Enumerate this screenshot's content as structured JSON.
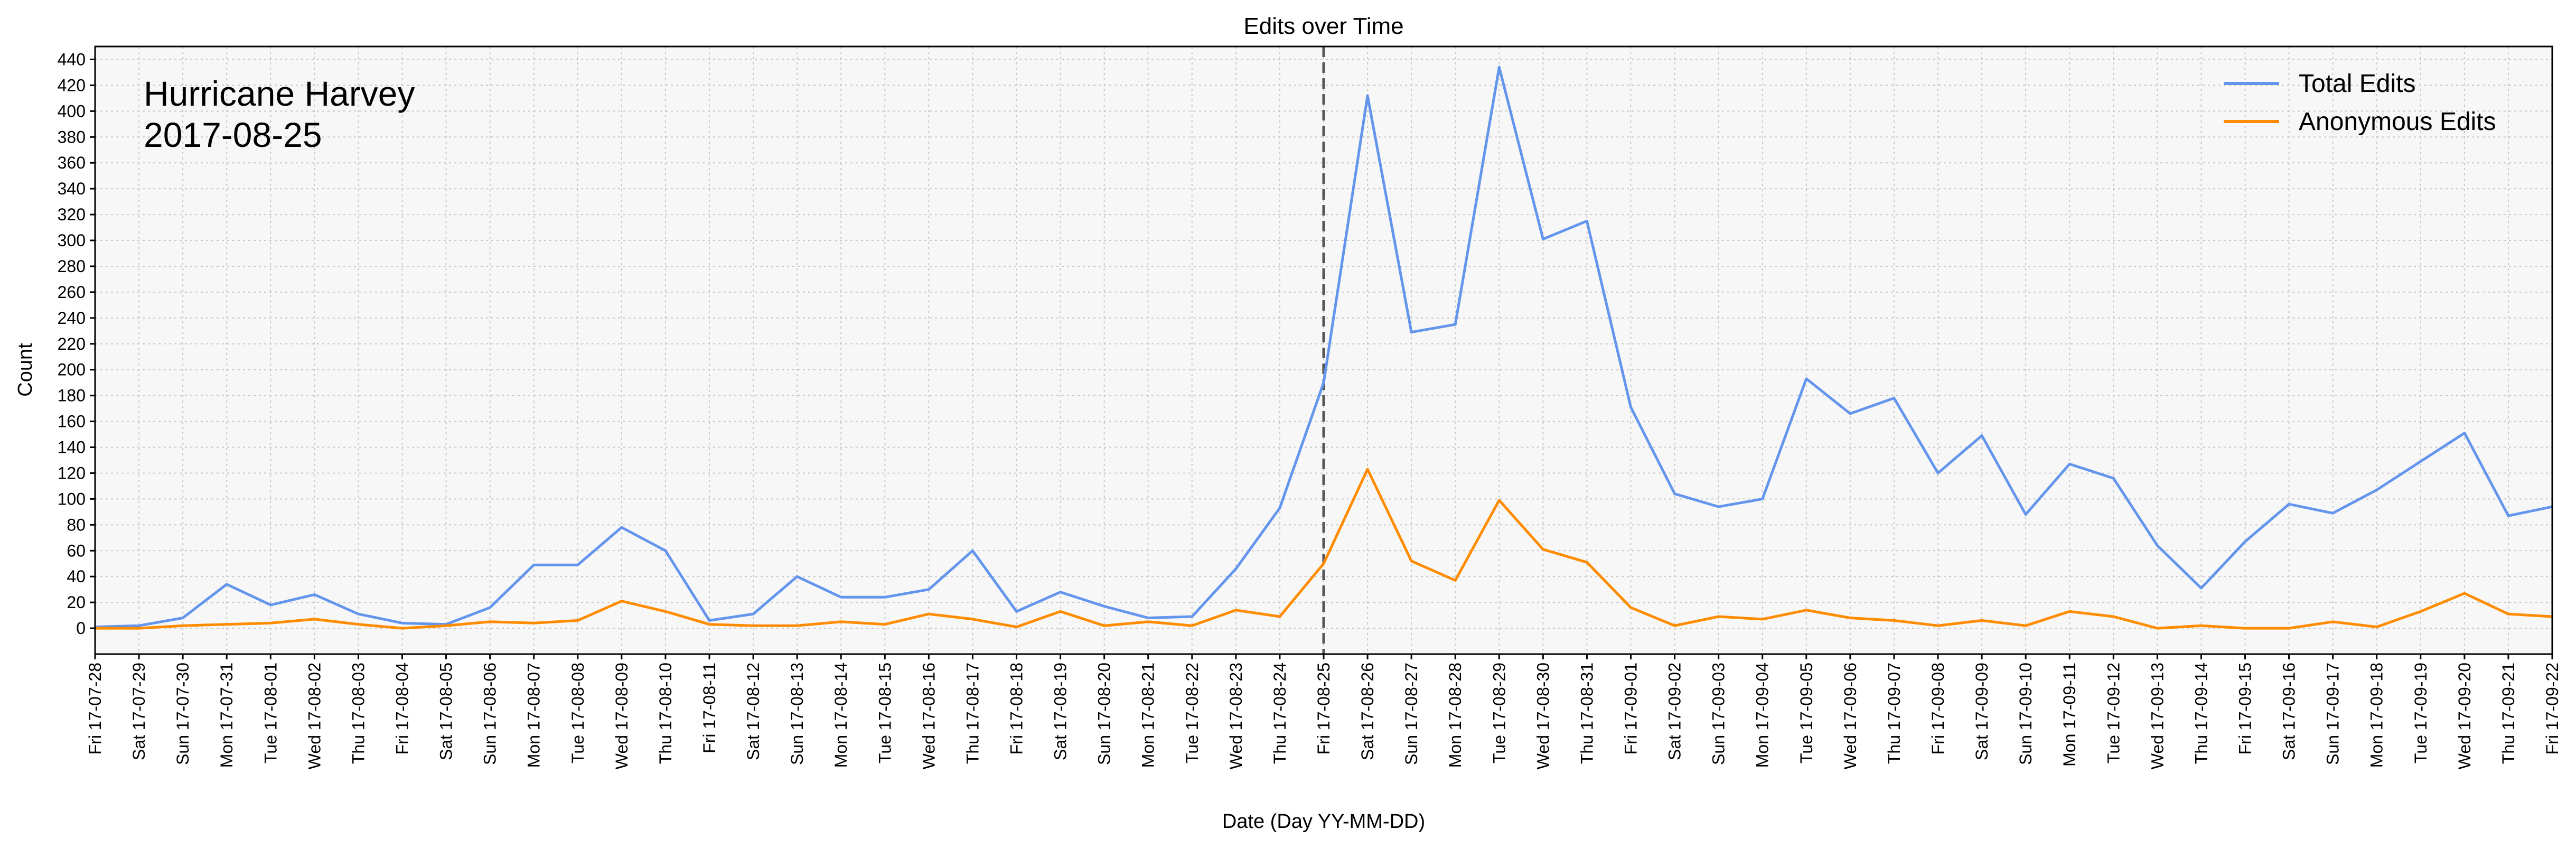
{
  "chart_data": {
    "type": "line",
    "title": "Edits over Time",
    "xlabel": "Date (Day YY-MM-DD)",
    "ylabel": "Count",
    "annotation": [
      "Hurricane Harvey",
      "2017-08-25"
    ],
    "event_date_label": "Fri 17-08-25",
    "ylim": [
      -20,
      450
    ],
    "y_ticks": [
      0,
      20,
      40,
      60,
      80,
      100,
      120,
      140,
      160,
      180,
      200,
      220,
      240,
      260,
      280,
      300,
      320,
      340,
      360,
      380,
      400,
      420,
      440
    ],
    "grid": true,
    "legend_position": "top-right",
    "x": [
      "Fri 17-07-28",
      "Sat 17-07-29",
      "Sun 17-07-30",
      "Mon 17-07-31",
      "Tue 17-08-01",
      "Wed 17-08-02",
      "Thu 17-08-03",
      "Fri 17-08-04",
      "Sat 17-08-05",
      "Sun 17-08-06",
      "Mon 17-08-07",
      "Tue 17-08-08",
      "Wed 17-08-09",
      "Thu 17-08-10",
      "Fri 17-08-11",
      "Sat 17-08-12",
      "Sun 17-08-13",
      "Mon 17-08-14",
      "Tue 17-08-15",
      "Wed 17-08-16",
      "Thu 17-08-17",
      "Fri 17-08-18",
      "Sat 17-08-19",
      "Sun 17-08-20",
      "Mon 17-08-21",
      "Tue 17-08-22",
      "Wed 17-08-23",
      "Thu 17-08-24",
      "Fri 17-08-25",
      "Sat 17-08-26",
      "Sun 17-08-27",
      "Mon 17-08-28",
      "Tue 17-08-29",
      "Wed 17-08-30",
      "Thu 17-08-31",
      "Fri 17-09-01",
      "Sat 17-09-02",
      "Sun 17-09-03",
      "Mon 17-09-04",
      "Tue 17-09-05",
      "Wed 17-09-06",
      "Thu 17-09-07",
      "Fri 17-09-08",
      "Sat 17-09-09",
      "Sun 17-09-10",
      "Mon 17-09-11",
      "Tue 17-09-12",
      "Wed 17-09-13",
      "Thu 17-09-14",
      "Fri 17-09-15",
      "Sat 17-09-16",
      "Sun 17-09-17",
      "Mon 17-09-18",
      "Tue 17-09-19",
      "Wed 17-09-20",
      "Thu 17-09-21",
      "Fri 17-09-22"
    ],
    "series": [
      {
        "name": "Total Edits",
        "color": "#6495ED",
        "values": [
          1,
          2,
          8,
          34,
          18,
          26,
          11,
          4,
          3,
          16,
          49,
          49,
          78,
          60,
          6,
          11,
          40,
          24,
          24,
          30,
          60,
          13,
          28,
          17,
          8,
          9,
          46,
          93,
          190,
          412,
          229,
          235,
          434,
          301,
          315,
          171,
          104,
          94,
          100,
          193,
          166,
          178,
          120,
          149,
          88,
          127,
          116,
          64,
          31,
          67,
          96,
          89,
          107,
          129,
          151,
          87,
          94
        ]
      },
      {
        "name": "Anonymous Edits",
        "color": "#FF8C00",
        "values": [
          0,
          0,
          2,
          3,
          4,
          7,
          3,
          0,
          2,
          5,
          4,
          6,
          21,
          13,
          3,
          2,
          2,
          5,
          3,
          11,
          7,
          1,
          13,
          2,
          5,
          2,
          14,
          9,
          50,
          123,
          52,
          37,
          99,
          61,
          51,
          16,
          2,
          9,
          7,
          14,
          8,
          6,
          2,
          6,
          2,
          13,
          9,
          0,
          2,
          0,
          0,
          5,
          1,
          13,
          27,
          11,
          9
        ]
      }
    ]
  }
}
